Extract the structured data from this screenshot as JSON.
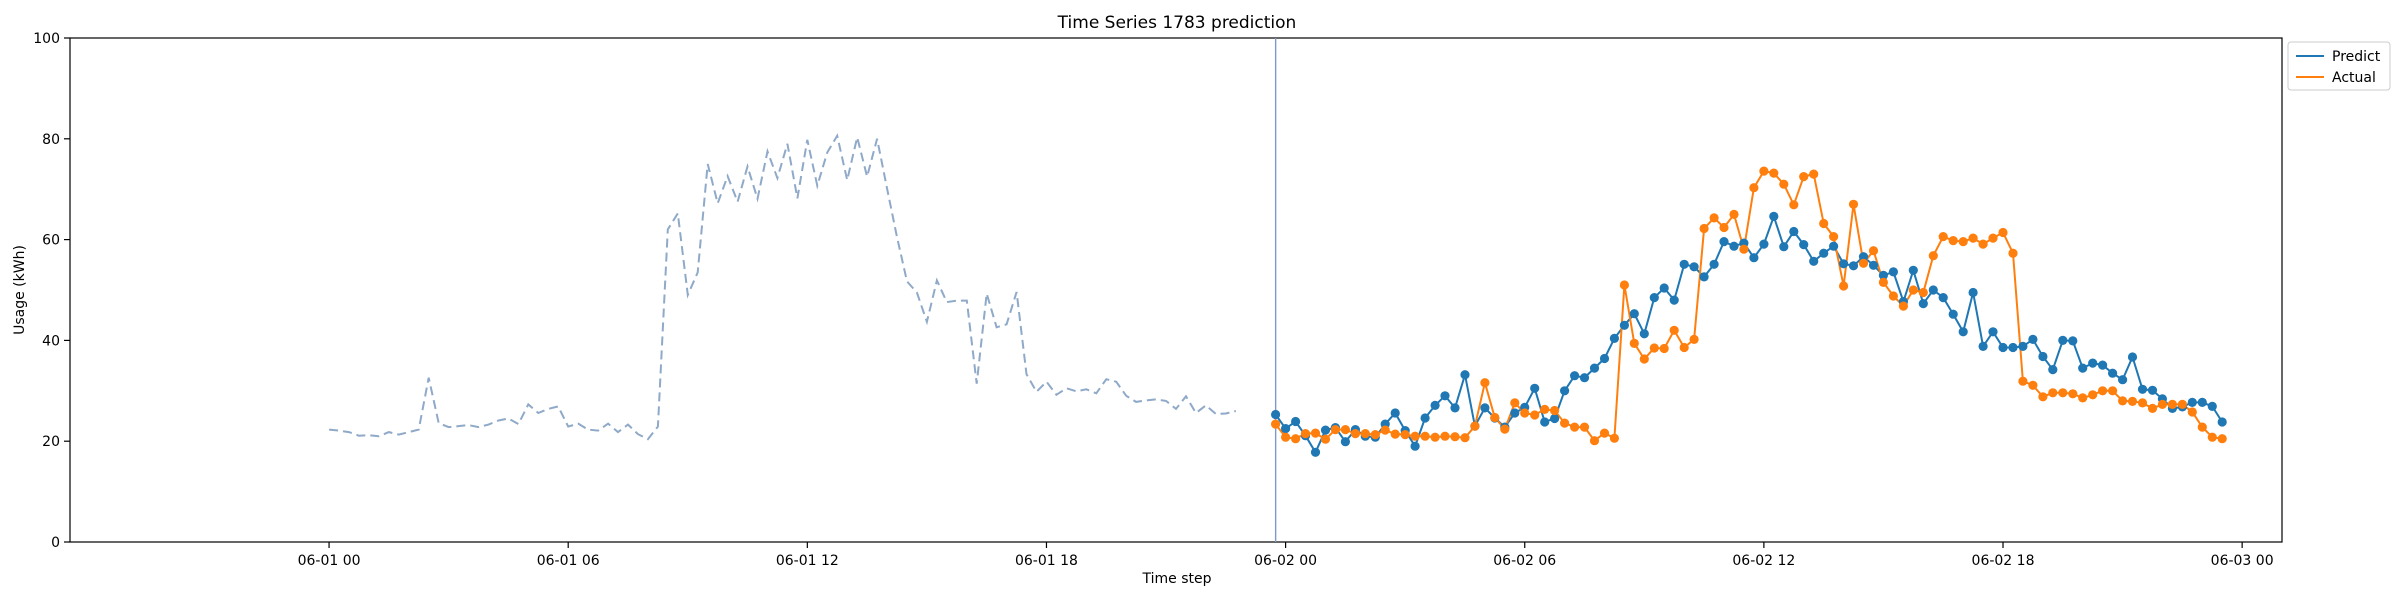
{
  "chart_data": {
    "type": "line",
    "title": "Time Series 1783 prediction",
    "xlabel": "Time step",
    "ylabel": "Usage (kWh)",
    "ylim": [
      0,
      100
    ],
    "yticks": [
      0,
      20,
      40,
      60,
      80,
      100
    ],
    "xlim": [
      "05-31 17:30",
      "06-03 01:00"
    ],
    "xticks": [
      {
        "t": "06-01 00:00",
        "label": "06-01 00"
      },
      {
        "t": "06-01 06:00",
        "label": "06-01 06"
      },
      {
        "t": "06-01 12:00",
        "label": "06-01 12"
      },
      {
        "t": "06-01 18:00",
        "label": "06-01 18"
      },
      {
        "t": "06-02 00:00",
        "label": "06-02 00"
      },
      {
        "t": "06-02 06:00",
        "label": "06-02 06"
      },
      {
        "t": "06-02 12:00",
        "label": "06-02 12"
      },
      {
        "t": "06-02 18:00",
        "label": "06-02 18"
      },
      {
        "t": "06-03 00:00",
        "label": "06-03 00"
      }
    ],
    "grid": false,
    "legend_position": "upper-right-outside",
    "forecast_start": "06-01 23:45",
    "x_step_minutes": 15,
    "colors": {
      "history": "#8fa9c8",
      "predict": "#1f77b4",
      "actual": "#ff7f0e",
      "divider": "#7f99c8"
    },
    "history": {
      "start": "06-01 00:00",
      "values": [
        22.3,
        22.1,
        21.8,
        21.1,
        21.2,
        21.0,
        21.8,
        21.3,
        21.8,
        22.3,
        32.6,
        23.6,
        22.8,
        23.0,
        23.2,
        22.8,
        23.3,
        24.1,
        24.5,
        23.4,
        27.3,
        25.6,
        26.4,
        26.9,
        22.9,
        23.5,
        22.3,
        22.1,
        23.5,
        21.8,
        23.3,
        21.4,
        20.4,
        22.9,
        62.0,
        65.2,
        49.0,
        53.5,
        75.0,
        67.2,
        72.6,
        67.5,
        74.5,
        68.1,
        77.5,
        72.2,
        79.0,
        68.2,
        79.8,
        70.7,
        77.3,
        80.6,
        71.8,
        80.3,
        72.5,
        80.0,
        70.2,
        60.5,
        51.7,
        49.5,
        43.7,
        51.9,
        47.6,
        47.9,
        47.9,
        31.4,
        49.3,
        42.6,
        43.2,
        49.6,
        33.3,
        29.8,
        31.8,
        29.2,
        30.5,
        29.9,
        30.3,
        29.5,
        32.3,
        31.8,
        29.0,
        27.8,
        28.1,
        28.3,
        28.0,
        26.4,
        28.9,
        25.6,
        27.1,
        25.4,
        25.5,
        26.0
      ]
    },
    "series": [
      {
        "name": "Predict",
        "start": "06-01 23:45",
        "values": [
          25.3,
          22.5,
          23.9,
          21.1,
          17.8,
          22.2,
          22.7,
          19.9,
          22.3,
          21.0,
          20.8,
          23.4,
          25.6,
          22.1,
          19.0,
          24.6,
          27.1,
          29.0,
          26.6,
          33.2,
          23.0,
          26.6,
          24.6,
          22.8,
          25.6,
          26.7,
          30.5,
          23.8,
          24.5,
          30.0,
          33.0,
          32.6,
          34.5,
          36.4,
          40.4,
          43.0,
          45.3,
          41.3,
          48.5,
          50.4,
          48.0,
          55.1,
          54.6,
          52.6,
          55.1,
          59.6,
          58.7,
          59.3,
          56.4,
          59.1,
          64.6,
          58.6,
          61.6,
          59.0,
          55.7,
          57.3,
          58.7,
          55.2,
          54.8,
          56.6,
          54.9,
          52.9,
          53.6,
          47.7,
          53.9,
          47.3,
          50.0,
          48.5,
          45.2,
          41.7,
          49.5,
          38.8,
          41.7,
          38.6,
          38.6,
          38.8,
          40.2,
          36.8,
          34.2,
          40.0,
          39.9,
          34.5,
          35.5,
          35.1,
          33.5,
          32.2,
          36.7,
          30.3,
          30.1,
          28.4,
          26.5,
          26.8,
          27.7,
          27.7,
          26.9,
          23.8
        ]
      },
      {
        "name": "Actual",
        "start": "06-01 23:45",
        "values": [
          23.4,
          20.8,
          20.5,
          21.5,
          21.6,
          20.4,
          22.3,
          22.3,
          21.5,
          21.5,
          21.3,
          22.2,
          21.4,
          21.3,
          21.0,
          21.0,
          20.8,
          21.0,
          20.9,
          20.7,
          23.0,
          31.6,
          24.7,
          22.4,
          27.6,
          25.6,
          25.2,
          26.3,
          26.1,
          23.6,
          22.8,
          22.8,
          20.1,
          21.6,
          20.6,
          51.0,
          39.4,
          36.3,
          38.5,
          38.4,
          42.0,
          38.6,
          40.2,
          62.2,
          64.3,
          62.4,
          65.0,
          58.1,
          70.3,
          73.6,
          73.2,
          71.0,
          66.9,
          72.5,
          73.0,
          63.2,
          60.6,
          50.8,
          67.0,
          55.3,
          57.8,
          51.5,
          48.8,
          46.8,
          50.0,
          49.5,
          56.8,
          60.6,
          59.8,
          59.6,
          60.3,
          59.1,
          60.3,
          61.4,
          57.3,
          31.9,
          31.1,
          28.8,
          29.6,
          29.6,
          29.4,
          28.6,
          29.2,
          30.0,
          30.0,
          28.0,
          27.9,
          27.6,
          26.5,
          27.3,
          27.3,
          27.3,
          25.8,
          22.8,
          20.8,
          20.5
        ]
      }
    ]
  }
}
